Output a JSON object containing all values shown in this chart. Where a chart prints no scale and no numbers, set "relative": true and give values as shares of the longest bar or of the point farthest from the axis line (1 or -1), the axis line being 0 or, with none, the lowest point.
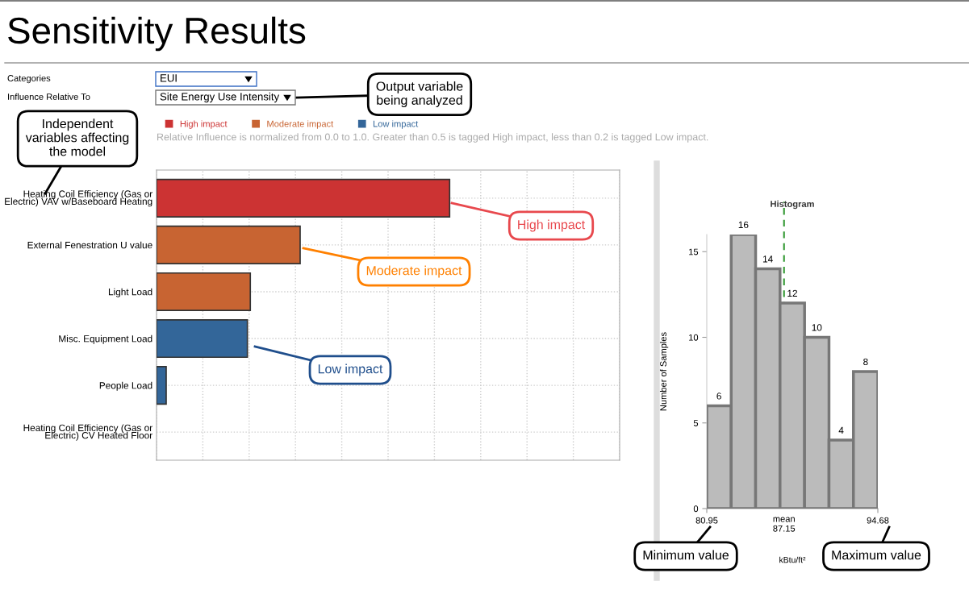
{
  "chart_data": [
    {
      "type": "bar",
      "orientation": "horizontal",
      "relative": true,
      "title": "Sensitivity Results",
      "subtitle": "Relative Influence is normalized from 0.0 to 1.0. Greater than 0.5 is tagged High impact, less than 0.2 is tagged Low impact.",
      "categories": [
        "Heating Coil Efficiency (Gas or\nElectric) VAV w/Baseboard Heating",
        "External Fenestration U value",
        "Light Load",
        "Misc. Equipment Load",
        "People Load",
        "Heating Coil Efficiency (Gas or\nElectric) CV Heated Floor"
      ],
      "series": [
        {
          "name": "High impact",
          "color": "#cc3333",
          "values": [
            1,
            null,
            null,
            null,
            null,
            null
          ]
        },
        {
          "name": "Moderate impact",
          "color": "#c86432",
          "values": [
            null,
            0.49,
            0.32,
            null,
            null,
            null
          ]
        },
        {
          "name": "Low impact",
          "color": "#336699",
          "values": [
            null,
            null,
            null,
            0.31,
            0.033,
            0
          ]
        }
      ],
      "legend": "top left",
      "grid": true,
      "annotations": [
        "Categories",
        "EUI",
        "Influence Relative To",
        "Site Energy Use Intensity",
        "Output variable\nbeing analyzed",
        "Independent\nvariables affecting\nthe model",
        "High impact",
        "Moderate impact",
        "Low impact"
      ]
    },
    {
      "type": "histogram",
      "title": "Histogram",
      "xlabel": "kBtu/ft²",
      "ylabel": "Number of Samples",
      "bins": [
        80.95,
        82.91,
        84.87,
        86.83,
        88.8,
        90.76,
        92.72,
        94.68
      ],
      "values": [
        6,
        16,
        14,
        12,
        10,
        4,
        8
      ],
      "color": "#bbbbbb",
      "data_labels": true,
      "xlim": [
        80.95,
        94.68
      ],
      "xticks": [
        80.95,
        94.68
      ],
      "ylim": [
        0,
        16
      ],
      "yticks": [
        0,
        5,
        10,
        15
      ],
      "grid": false,
      "ref_lines": [
        {
          "axis": "x",
          "value": 87.15,
          "label": "mean\n87.15",
          "color": "#339933",
          "line_style": "dashed"
        }
      ],
      "annotations": [
        "Minimum value",
        "Maximum value"
      ]
    }
  ]
}
